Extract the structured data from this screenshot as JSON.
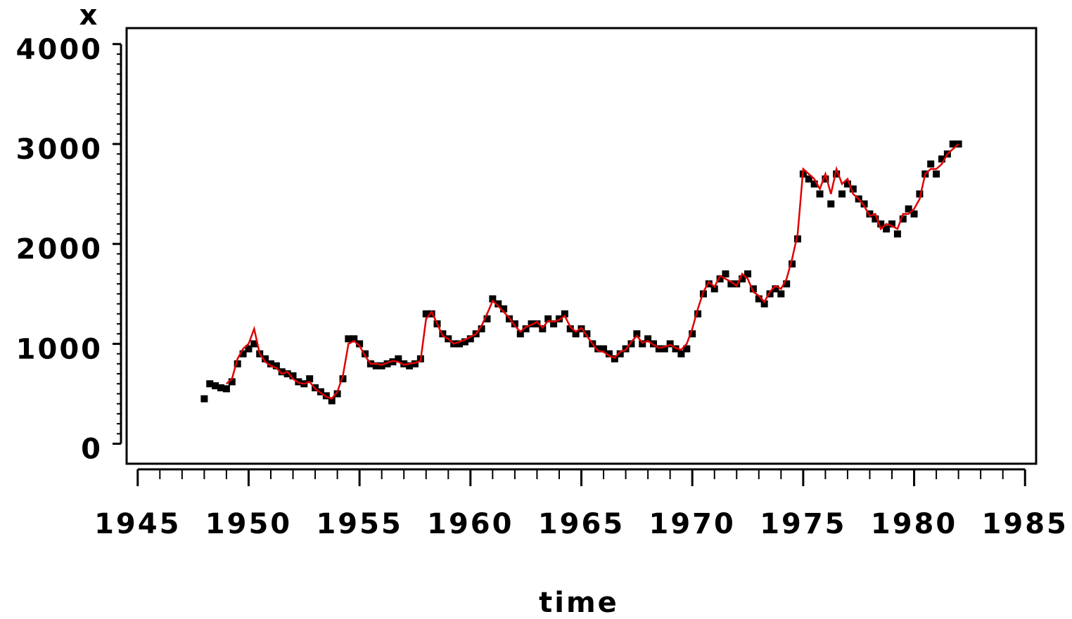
{
  "chart_data": {
    "type": "scatter",
    "y_label": "x",
    "x_label": "time",
    "xlim": [
      1944.5,
      1985.5
    ],
    "ylim": [
      -200,
      4160
    ],
    "xticks": [
      1945,
      1950,
      1955,
      1960,
      1965,
      1970,
      1975,
      1980,
      1985
    ],
    "yticks": [
      0,
      1000,
      2000,
      3000,
      4000
    ],
    "x": [
      1948,
      1948.25,
      1948.5,
      1948.75,
      1949,
      1949.25,
      1949.5,
      1949.75,
      1950,
      1950.25,
      1950.5,
      1950.75,
      1951,
      1951.25,
      1951.5,
      1951.75,
      1952,
      1952.25,
      1952.5,
      1952.75,
      1953,
      1953.25,
      1953.5,
      1953.75,
      1954,
      1954.25,
      1954.5,
      1954.75,
      1955,
      1955.25,
      1955.5,
      1955.75,
      1956,
      1956.25,
      1956.5,
      1956.75,
      1957,
      1957.25,
      1957.5,
      1957.75,
      1958,
      1958.25,
      1958.5,
      1958.75,
      1959,
      1959.25,
      1959.5,
      1959.75,
      1960,
      1960.25,
      1960.5,
      1960.75,
      1961,
      1961.25,
      1961.5,
      1961.75,
      1962,
      1962.25,
      1962.5,
      1962.75,
      1963,
      1963.25,
      1963.5,
      1963.75,
      1964,
      1964.25,
      1964.5,
      1964.75,
      1965,
      1965.25,
      1965.5,
      1965.75,
      1966,
      1966.25,
      1966.5,
      1966.75,
      1967,
      1967.25,
      1967.5,
      1967.75,
      1968,
      1968.25,
      1968.5,
      1968.75,
      1969,
      1969.25,
      1969.5,
      1969.75,
      1970,
      1970.25,
      1970.5,
      1970.75,
      1971,
      1971.25,
      1971.5,
      1971.75,
      1972,
      1972.25,
      1972.5,
      1972.75,
      1973,
      1973.25,
      1973.5,
      1973.75,
      1974,
      1974.25,
      1974.5,
      1974.75,
      1975,
      1975.25,
      1975.5,
      1975.75,
      1976,
      1976.25,
      1976.5,
      1976.75,
      1977,
      1977.25,
      1977.5,
      1977.75,
      1978,
      1978.25,
      1978.5,
      1978.75,
      1979,
      1979.25,
      1979.5,
      1979.75,
      1980,
      1980.25,
      1980.5,
      1980.75,
      1981,
      1981.25,
      1981.5,
      1981.75,
      1982
    ],
    "series": [
      {
        "color": "#000000",
        "marker": "square",
        "values": [
          450,
          600,
          580,
          560,
          550,
          620,
          800,
          900,
          950,
          1000,
          900,
          850,
          800,
          780,
          720,
          700,
          680,
          620,
          600,
          650,
          560,
          520,
          480,
          430,
          500,
          650,
          1050,
          1050,
          1000,
          900,
          800,
          780,
          780,
          800,
          820,
          850,
          800,
          780,
          800,
          850,
          1300,
          1300,
          1200,
          1100,
          1050,
          1000,
          1000,
          1020,
          1050,
          1100,
          1150,
          1250,
          1450,
          1400,
          1350,
          1250,
          1200,
          1100,
          1150,
          1200,
          1200,
          1150,
          1250,
          1200,
          1250,
          1300,
          1150,
          1100,
          1150,
          1100,
          1000,
          950,
          950,
          900,
          850,
          900,
          950,
          1000,
          1100,
          1000,
          1050,
          1000,
          950,
          950,
          1000,
          950,
          900,
          950,
          1100,
          1300,
          1500,
          1600,
          1550,
          1650,
          1700,
          1600,
          1600,
          1650,
          1700,
          1550,
          1450,
          1400,
          1500,
          1550,
          1500,
          1600,
          1800,
          2050,
          2700,
          2650,
          2600,
          2500,
          2650,
          2400,
          2700,
          2500,
          2600,
          2550,
          2450,
          2400,
          2300,
          2250,
          2200,
          2150,
          2200,
          2100,
          2250,
          2350,
          2300,
          2500,
          2700,
          2800,
          2700,
          2850,
          2900,
          3000,
          3000
        ]
      },
      {
        "color": "#e00000",
        "marker": "line",
        "values": [
          null,
          null,
          null,
          null,
          600,
          650,
          850,
          950,
          1000,
          1150,
          900,
          820,
          780,
          760,
          700,
          720,
          650,
          610,
          600,
          620,
          550,
          510,
          470,
          450,
          520,
          680,
          1000,
          1030,
          980,
          880,
          800,
          800,
          790,
          810,
          830,
          820,
          790,
          800,
          810,
          830,
          1250,
          1320,
          1200,
          1080,
          1050,
          1000,
          1020,
          1040,
          1070,
          1100,
          1180,
          1300,
          1430,
          1380,
          1320,
          1260,
          1180,
          1120,
          1170,
          1190,
          1220,
          1160,
          1230,
          1220,
          1240,
          1280,
          1170,
          1120,
          1160,
          1080,
          1000,
          930,
          920,
          880,
          860,
          920,
          940,
          1020,
          1080,
          1010,
          1030,
          990,
          960,
          970,
          990,
          960,
          940,
          1000,
          1150,
          1350,
          1520,
          1620,
          1570,
          1680,
          1650,
          1620,
          1580,
          1700,
          1650,
          1520,
          1480,
          1420,
          1520,
          1580,
          1550,
          1650,
          1850,
          2100,
          2750,
          2700,
          2650,
          2550,
          2700,
          2500,
          2750,
          2600,
          2650,
          2500,
          2450,
          2380,
          2280,
          2300,
          2150,
          2200,
          2180,
          2150,
          2300,
          2300,
          2350,
          2450,
          2700,
          2750,
          2750,
          2800,
          2900,
          2950,
          3000
        ]
      }
    ]
  }
}
